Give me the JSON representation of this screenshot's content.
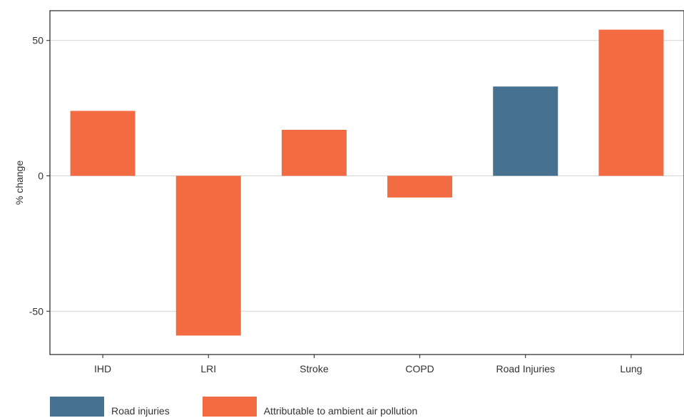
{
  "chart_data": {
    "type": "bar",
    "categories": [
      "IHD",
      "LRI",
      "Stroke",
      "COPD",
      "Road Injuries",
      "Lung"
    ],
    "values": [
      24,
      -59,
      17,
      -8,
      33,
      54
    ],
    "series_index": [
      1,
      1,
      1,
      1,
      0,
      1
    ],
    "ylabel": "% change",
    "xlabel": "",
    "ylim": [
      -66,
      61
    ],
    "yticks": [
      -50,
      0,
      50
    ],
    "grid": true,
    "legend_position": "bottom-left",
    "legend": [
      {
        "label": "Road injuries",
        "color": "#46728f"
      },
      {
        "label": "Attributable to ambient air pollution",
        "color": "#f26b43"
      }
    ]
  }
}
